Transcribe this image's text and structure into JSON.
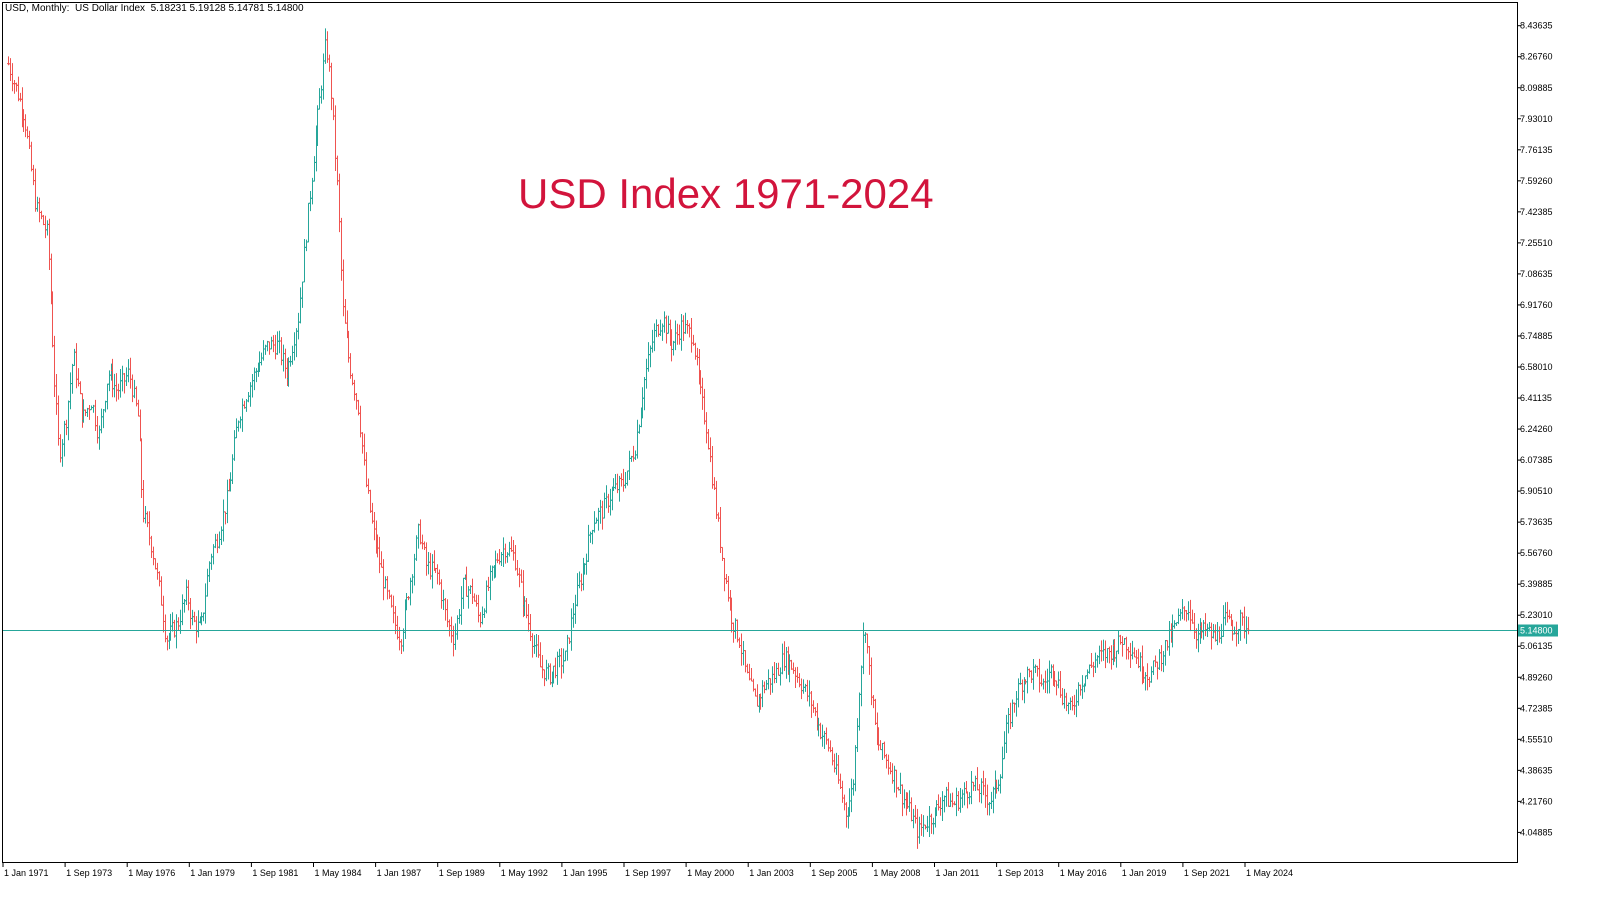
{
  "header": {
    "symbol": "USD, Monthly:",
    "name": "US Dollar Index",
    "ohlc": "5.18231 5.19128 5.14781 5.14800"
  },
  "annotation": "USD Index 1971-2024",
  "colors": {
    "up": "#26a69a",
    "down": "#ef5350",
    "price_line": "#26a69a",
    "title": "#d2143c"
  },
  "chart_data": {
    "type": "ohlc",
    "title": "USD Index 1971-2024",
    "xlabel": "",
    "ylabel": "",
    "ylim": [
      3.96,
      8.52
    ],
    "last_price": 5.148,
    "last_price_label": "5.14800",
    "y_ticks": [
      "8.43635",
      "8.26760",
      "8.09885",
      "7.93010",
      "7.76135",
      "7.59260",
      "7.42385",
      "7.25510",
      "7.08635",
      "6.91760",
      "6.74885",
      "6.58010",
      "6.41135",
      "6.24260",
      "6.07385",
      "5.90510",
      "5.73635",
      "5.56760",
      "5.39885",
      "5.23010",
      "5.06135",
      "4.89260",
      "4.72385",
      "4.55510",
      "4.38635",
      "4.21760",
      "4.04885"
    ],
    "x_ticks": [
      "1 Jan 1971",
      "1 Sep 1973",
      "1 May 1976",
      "1 Jan 1979",
      "1 Sep 1981",
      "1 May 1984",
      "1 Jan 1987",
      "1 Sep 1989",
      "1 May 1992",
      "1 Jan 1995",
      "1 Sep 1997",
      "1 May 2000",
      "1 Jan 2003",
      "1 Sep 2005",
      "1 May 2008",
      "1 Jan 2011",
      "1 Sep 2013",
      "1 May 2016",
      "1 Jan 2019",
      "1 Sep 2021",
      "1 May 2024"
    ],
    "x_range_years": [
      1971.0,
      2024.42
    ],
    "path": [
      [
        1971.0,
        8.23
      ],
      [
        1971.7,
        7.95
      ],
      [
        1972.2,
        7.45
      ],
      [
        1972.7,
        7.3
      ],
      [
        1973.0,
        6.5
      ],
      [
        1973.2,
        6.1
      ],
      [
        1973.5,
        6.3
      ],
      [
        1973.8,
        6.65
      ],
      [
        1974.2,
        6.3
      ],
      [
        1974.6,
        6.4
      ],
      [
        1974.9,
        6.2
      ],
      [
        1975.3,
        6.55
      ],
      [
        1975.7,
        6.45
      ],
      [
        1976.2,
        6.55
      ],
      [
        1976.6,
        6.3
      ],
      [
        1976.8,
        5.8
      ],
      [
        1977.2,
        5.6
      ],
      [
        1977.6,
        5.3
      ],
      [
        1977.8,
        5.1
      ],
      [
        1978.3,
        5.18
      ],
      [
        1978.7,
        5.35
      ],
      [
        1978.9,
        5.2
      ],
      [
        1979.3,
        5.15
      ],
      [
        1979.7,
        5.55
      ],
      [
        1980.0,
        5.65
      ],
      [
        1980.5,
        5.9
      ],
      [
        1980.9,
        6.3
      ],
      [
        1981.3,
        6.45
      ],
      [
        1981.8,
        6.6
      ],
      [
        1982.2,
        6.7
      ],
      [
        1982.6,
        6.7
      ],
      [
        1983.0,
        6.55
      ],
      [
        1983.5,
        6.85
      ],
      [
        1983.9,
        7.4
      ],
      [
        1984.3,
        7.9
      ],
      [
        1984.7,
        8.35
      ],
      [
        1984.9,
        8.1
      ],
      [
        1985.2,
        7.5
      ],
      [
        1985.4,
        6.9
      ],
      [
        1985.7,
        6.6
      ],
      [
        1986.1,
        6.35
      ],
      [
        1986.4,
        5.95
      ],
      [
        1986.7,
        5.7
      ],
      [
        1987.2,
        5.4
      ],
      [
        1987.6,
        5.2
      ],
      [
        1987.9,
        5.1
      ],
      [
        1988.3,
        5.4
      ],
      [
        1988.7,
        5.7
      ],
      [
        1989.0,
        5.5
      ],
      [
        1989.5,
        5.45
      ],
      [
        1989.9,
        5.2
      ],
      [
        1990.2,
        5.1
      ],
      [
        1990.6,
        5.4
      ],
      [
        1991.0,
        5.35
      ],
      [
        1991.3,
        5.2
      ],
      [
        1991.7,
        5.4
      ],
      [
        1992.1,
        5.55
      ],
      [
        1992.4,
        5.6
      ],
      [
        1992.8,
        5.55
      ],
      [
        1993.2,
        5.3
      ],
      [
        1993.6,
        5.1
      ],
      [
        1993.9,
        4.95
      ],
      [
        1994.3,
        4.9
      ],
      [
        1994.6,
        4.95
      ],
      [
        1995.0,
        5.0
      ],
      [
        1995.4,
        5.3
      ],
      [
        1995.8,
        5.5
      ],
      [
        1996.2,
        5.75
      ],
      [
        1996.6,
        5.8
      ],
      [
        1997.0,
        5.9
      ],
      [
        1997.5,
        5.95
      ],
      [
        1998.0,
        6.15
      ],
      [
        1998.4,
        6.5
      ],
      [
        1998.8,
        6.75
      ],
      [
        1999.2,
        6.85
      ],
      [
        1999.6,
        6.7
      ],
      [
        2000.0,
        6.8
      ],
      [
        2000.5,
        6.75
      ],
      [
        2000.8,
        6.45
      ],
      [
        2001.1,
        6.25
      ],
      [
        2001.5,
        5.8
      ],
      [
        2001.8,
        5.5
      ],
      [
        2002.2,
        5.2
      ],
      [
        2002.5,
        5.1
      ],
      [
        2002.8,
        4.9
      ],
      [
        2003.2,
        4.75
      ],
      [
        2003.6,
        4.85
      ],
      [
        2004.0,
        4.9
      ],
      [
        2004.4,
        5.0
      ],
      [
        2004.8,
        4.95
      ],
      [
        2005.2,
        4.85
      ],
      [
        2005.6,
        4.75
      ],
      [
        2006.0,
        4.6
      ],
      [
        2006.4,
        4.5
      ],
      [
        2006.8,
        4.3
      ],
      [
        2007.1,
        4.15
      ],
      [
        2007.4,
        4.3
      ],
      [
        2007.7,
        4.9
      ],
      [
        2007.9,
        5.2
      ],
      [
        2008.1,
        4.9
      ],
      [
        2008.4,
        4.55
      ],
      [
        2008.8,
        4.45
      ],
      [
        2009.2,
        4.35
      ],
      [
        2009.5,
        4.25
      ],
      [
        2009.9,
        4.15
      ],
      [
        2010.2,
        4.05
      ],
      [
        2010.5,
        4.1
      ],
      [
        2010.9,
        4.15
      ],
      [
        2011.3,
        4.25
      ],
      [
        2011.7,
        4.2
      ],
      [
        2012.1,
        4.25
      ],
      [
        2012.5,
        4.3
      ],
      [
        2012.9,
        4.28
      ],
      [
        2013.3,
        4.22
      ],
      [
        2013.7,
        4.35
      ],
      [
        2014.0,
        4.6
      ],
      [
        2014.4,
        4.8
      ],
      [
        2014.8,
        4.9
      ],
      [
        2015.2,
        4.92
      ],
      [
        2015.6,
        4.85
      ],
      [
        2016.0,
        4.95
      ],
      [
        2016.4,
        4.8
      ],
      [
        2016.8,
        4.7
      ],
      [
        2017.1,
        4.85
      ],
      [
        2017.5,
        4.92
      ],
      [
        2017.9,
        5.0
      ],
      [
        2018.3,
        5.02
      ],
      [
        2018.7,
        5.05
      ],
      [
        2019.0,
        5.1
      ],
      [
        2019.4,
        5.05
      ],
      [
        2019.8,
        4.95
      ],
      [
        2020.2,
        4.9
      ],
      [
        2020.6,
        5.0
      ],
      [
        2021.0,
        5.1
      ],
      [
        2021.5,
        5.22
      ],
      [
        2021.8,
        5.28
      ],
      [
        2022.2,
        5.12
      ],
      [
        2022.6,
        5.15
      ],
      [
        2023.0,
        5.1
      ],
      [
        2023.4,
        5.2
      ],
      [
        2023.8,
        5.16
      ],
      [
        2024.1,
        5.2
      ],
      [
        2024.42,
        5.148
      ]
    ]
  }
}
